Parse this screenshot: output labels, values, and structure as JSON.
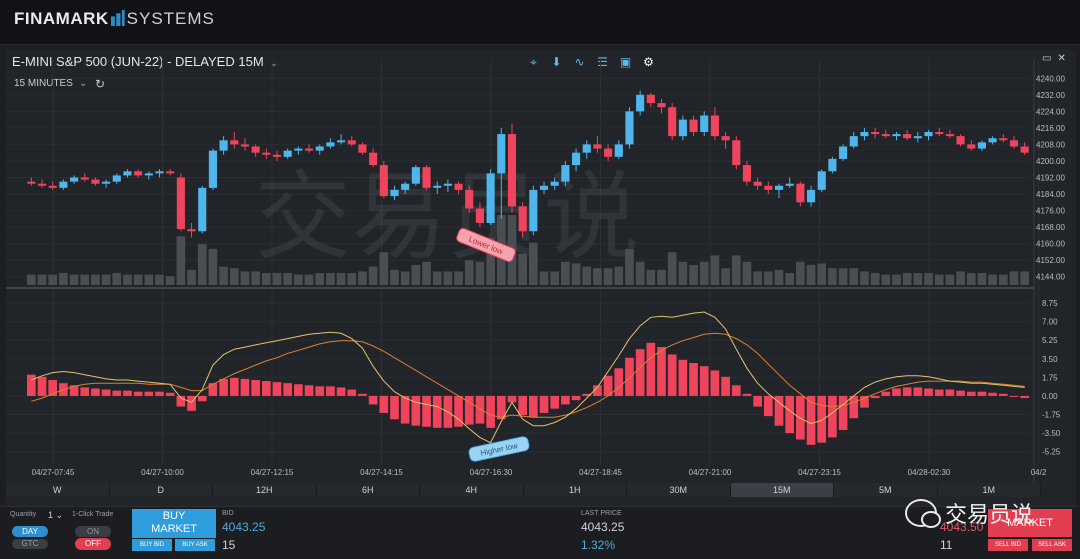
{
  "app": {
    "logo_main": "FINAMARK",
    "logo_sub": "SYSTEMS"
  },
  "chart_header": {
    "title": "E-MINI S&P 500 (JUN-22) - DELAYED 15M",
    "interval": "15 MINUTES"
  },
  "tools": [
    {
      "name": "crosshair-icon",
      "glyph": "⌖"
    },
    {
      "name": "marker-icon",
      "glyph": "⬇"
    },
    {
      "name": "indicator-icon",
      "glyph": "∿"
    },
    {
      "name": "layers-icon",
      "glyph": "☰"
    },
    {
      "name": "calendar-icon",
      "glyph": "▣"
    },
    {
      "name": "gear-icon",
      "glyph": "⚙"
    }
  ],
  "watermark": "交易员说",
  "chart_data": [
    {
      "type": "candlestick",
      "ylim": [
        4140,
        4244
      ],
      "yticks": [
        4240,
        4232,
        4224,
        4216,
        4208,
        4200,
        4192,
        4184,
        4176,
        4168,
        4160,
        4152,
        4144
      ],
      "ytick_labels": [
        "4240.00",
        "4232.00",
        "4224.00",
        "4216.00",
        "4208.00",
        "4200.00",
        "4192.00",
        "4184.00",
        "4176.00",
        "4168.00",
        "4160.00",
        "4152.00",
        "4144.00"
      ],
      "xtick_labels": [
        "04/27-07:45",
        "04/27-10:00",
        "04/27-12:15",
        "04/27-14:15",
        "04/27-16:30",
        "04/27-18:45",
        "04/27-21:00",
        "04/27-23:15",
        "04/28-02:30",
        "04/2"
      ],
      "annotation": "Lower low",
      "candles_ohlc": [
        [
          4190,
          4192,
          4188,
          4189
        ],
        [
          4189,
          4191,
          4187,
          4188
        ],
        [
          4188,
          4190,
          4186,
          4187
        ],
        [
          4187,
          4191,
          4186,
          4190
        ],
        [
          4190,
          4193,
          4189,
          4192
        ],
        [
          4192,
          4194,
          4190,
          4191
        ],
        [
          4191,
          4192,
          4188,
          4189
        ],
        [
          4189,
          4191,
          4187,
          4190
        ],
        [
          4190,
          4194,
          4189,
          4193
        ],
        [
          4193,
          4196,
          4192,
          4195
        ],
        [
          4195,
          4196,
          4192,
          4193
        ],
        [
          4193,
          4195,
          4191,
          4194
        ],
        [
          4194,
          4196,
          4192,
          4195
        ],
        [
          4195,
          4196,
          4193,
          4194
        ],
        [
          4192,
          4194,
          4166,
          4167
        ],
        [
          4167,
          4170,
          4163,
          4166
        ],
        [
          4166,
          4188,
          4165,
          4187
        ],
        [
          4187,
          4206,
          4186,
          4205
        ],
        [
          4205,
          4212,
          4203,
          4210
        ],
        [
          4210,
          4214,
          4206,
          4208
        ],
        [
          4208,
          4211,
          4205,
          4207
        ],
        [
          4207,
          4208,
          4202,
          4204
        ],
        [
          4204,
          4206,
          4201,
          4203
        ],
        [
          4203,
          4205,
          4200,
          4202
        ],
        [
          4202,
          4206,
          4201,
          4205
        ],
        [
          4205,
          4207,
          4203,
          4206
        ],
        [
          4206,
          4208,
          4204,
          4205
        ],
        [
          4205,
          4208,
          4203,
          4207
        ],
        [
          4207,
          4211,
          4206,
          4209
        ],
        [
          4209,
          4213,
          4208,
          4210
        ],
        [
          4210,
          4212,
          4207,
          4208
        ],
        [
          4208,
          4209,
          4203,
          4204
        ],
        [
          4204,
          4206,
          4197,
          4198
        ],
        [
          4198,
          4200,
          4182,
          4183
        ],
        [
          4183,
          4188,
          4181,
          4186
        ],
        [
          4186,
          4190,
          4184,
          4189
        ],
        [
          4189,
          4198,
          4188,
          4197
        ],
        [
          4197,
          4198,
          4186,
          4187
        ],
        [
          4187,
          4190,
          4184,
          4188
        ],
        [
          4188,
          4191,
          4185,
          4189
        ],
        [
          4189,
          4190,
          4184,
          4186
        ],
        [
          4186,
          4188,
          4175,
          4177
        ],
        [
          4177,
          4180,
          4168,
          4170
        ],
        [
          4170,
          4196,
          4169,
          4194
        ],
        [
          4194,
          4216,
          4172,
          4213
        ],
        [
          4213,
          4218,
          4175,
          4178
        ],
        [
          4178,
          4180,
          4163,
          4166
        ],
        [
          4166,
          4188,
          4164,
          4186
        ],
        [
          4186,
          4190,
          4184,
          4188
        ],
        [
          4188,
          4192,
          4186,
          4190
        ],
        [
          4190,
          4200,
          4188,
          4198
        ],
        [
          4198,
          4206,
          4195,
          4204
        ],
        [
          4204,
          4210,
          4201,
          4208
        ],
        [
          4208,
          4212,
          4204,
          4206
        ],
        [
          4206,
          4208,
          4200,
          4202
        ],
        [
          4202,
          4210,
          4201,
          4208
        ],
        [
          4208,
          4226,
          4206,
          4224
        ],
        [
          4224,
          4234,
          4222,
          4232
        ],
        [
          4232,
          4233,
          4226,
          4228
        ],
        [
          4228,
          4230,
          4223,
          4226
        ],
        [
          4226,
          4228,
          4210,
          4212
        ],
        [
          4212,
          4222,
          4210,
          4220
        ],
        [
          4220,
          4222,
          4212,
          4214
        ],
        [
          4214,
          4224,
          4212,
          4222
        ],
        [
          4222,
          4226,
          4210,
          4212
        ],
        [
          4212,
          4214,
          4206,
          4210
        ],
        [
          4210,
          4212,
          4196,
          4198
        ],
        [
          4198,
          4200,
          4188,
          4190
        ],
        [
          4190,
          4192,
          4186,
          4188
        ],
        [
          4188,
          4190,
          4184,
          4186
        ],
        [
          4186,
          4189,
          4182,
          4188
        ],
        [
          4188,
          4192,
          4187,
          4189
        ],
        [
          4189,
          4190,
          4178,
          4180
        ],
        [
          4180,
          4188,
          4178,
          4186
        ],
        [
          4186,
          4196,
          4185,
          4195
        ],
        [
          4195,
          4202,
          4194,
          4201
        ],
        [
          4201,
          4208,
          4200,
          4207
        ],
        [
          4207,
          4214,
          4206,
          4212
        ],
        [
          4212,
          4216,
          4210,
          4214
        ],
        [
          4214,
          4216,
          4211,
          4213
        ],
        [
          4213,
          4215,
          4211,
          4212
        ],
        [
          4212,
          4214,
          4210,
          4213
        ],
        [
          4213,
          4215,
          4210,
          4211
        ],
        [
          4211,
          4214,
          4209,
          4212
        ],
        [
          4212,
          4215,
          4210,
          4214
        ],
        [
          4214,
          4216,
          4212,
          4213
        ],
        [
          4213,
          4215,
          4211,
          4212
        ],
        [
          4212,
          4213,
          4207,
          4208
        ],
        [
          4208,
          4210,
          4205,
          4206
        ],
        [
          4206,
          4210,
          4205,
          4209
        ],
        [
          4209,
          4212,
          4208,
          4211
        ],
        [
          4211,
          4213,
          4209,
          4210
        ],
        [
          4210,
          4212,
          4206,
          4207
        ],
        [
          4207,
          4209,
          4203,
          4204
        ]
      ]
    },
    {
      "type": "bar",
      "ylim": [
        -6.5,
        9.5
      ],
      "yticks": [
        8.75,
        7.0,
        5.25,
        3.5,
        1.75,
        0.0,
        -1.75,
        -3.5,
        -5.25
      ],
      "ytick_labels": [
        "8.75",
        "7.00",
        "5.25",
        "3.50",
        "1.75",
        "0.00",
        "-1.75",
        "-3.50",
        "-5.25"
      ],
      "annotation": "Higher low",
      "histogram": [
        2.0,
        1.8,
        1.5,
        1.2,
        1.0,
        0.8,
        0.7,
        0.6,
        0.5,
        0.5,
        0.4,
        0.4,
        0.4,
        0.3,
        -1.0,
        -1.4,
        -0.5,
        1.2,
        1.6,
        1.7,
        1.6,
        1.5,
        1.4,
        1.3,
        1.2,
        1.1,
        1.0,
        0.9,
        0.9,
        0.8,
        0.6,
        0.2,
        -0.8,
        -1.6,
        -2.2,
        -2.6,
        -2.8,
        -2.9,
        -3.0,
        -3.0,
        -2.9,
        -2.7,
        -2.6,
        -3.0,
        -2.2,
        -0.6,
        -1.8,
        -2.0,
        -1.6,
        -1.2,
        -0.8,
        -0.4,
        0.2,
        1.0,
        1.9,
        2.6,
        3.6,
        4.4,
        5.0,
        4.6,
        3.9,
        3.4,
        3.1,
        2.8,
        2.4,
        1.8,
        1.0,
        0.2,
        -1.0,
        -1.9,
        -2.8,
        -3.5,
        -4.1,
        -4.6,
        -4.4,
        -3.9,
        -3.2,
        -2.1,
        -1.1,
        -0.2,
        0.4,
        0.7,
        0.8,
        0.8,
        0.7,
        0.6,
        0.6,
        0.5,
        0.4,
        0.4,
        0.3,
        0.2,
        0.0,
        -0.2
      ],
      "line_fast": [
        1.5,
        1.9,
        2.2,
        2.3,
        2.2,
        2.0,
        1.8,
        1.6,
        1.5,
        1.5,
        1.4,
        1.3,
        1.2,
        1.1,
        -0.2,
        -0.6,
        0.6,
        2.9,
        3.9,
        4.4,
        4.6,
        4.8,
        5.0,
        5.2,
        5.4,
        5.6,
        5.8,
        5.9,
        6.0,
        5.9,
        5.4,
        4.5,
        2.8,
        1.4,
        0.4,
        -0.2,
        -0.6,
        -0.8,
        -1.0,
        -1.5,
        -2.2,
        -3.1,
        -3.9,
        -4.4,
        -2.4,
        -0.6,
        -2.2,
        -2.8,
        -2.8,
        -2.5,
        -2.0,
        -1.2,
        -0.2,
        0.8,
        2.3,
        3.8,
        5.4,
        6.6,
        7.4,
        7.5,
        7.4,
        7.6,
        7.8,
        7.9,
        7.4,
        6.3,
        4.4,
        2.6,
        1.2,
        0.2,
        -0.6,
        -1.4,
        -2.1,
        -2.6,
        -2.3,
        -1.6,
        -0.8,
        0.0,
        0.8,
        1.3,
        1.6,
        1.8,
        1.9,
        1.9,
        1.8,
        1.6,
        1.4,
        1.3,
        1.2,
        1.2,
        1.1,
        1.0,
        0.9,
        0.8
      ],
      "line_slow": [
        -0.5,
        -0.2,
        0.2,
        0.6,
        0.9,
        1.1,
        1.2,
        1.2,
        1.2,
        1.2,
        1.2,
        1.1,
        1.1,
        1.1,
        0.8,
        0.5,
        0.5,
        1.1,
        1.6,
        2.1,
        2.5,
        2.9,
        3.3,
        3.6,
        4.0,
        4.3,
        4.6,
        4.9,
        5.1,
        5.2,
        5.2,
        5.1,
        4.7,
        4.2,
        3.6,
        3.0,
        2.4,
        1.8,
        1.2,
        0.6,
        0.0,
        -0.6,
        -1.2,
        -1.8,
        -2.0,
        -1.8,
        -1.9,
        -2.0,
        -2.0,
        -2.0,
        -1.8,
        -1.5,
        -1.1,
        -0.6,
        0.0,
        0.8,
        1.7,
        2.7,
        3.6,
        4.3,
        4.8,
        5.2,
        5.5,
        5.8,
        5.9,
        5.8,
        5.4,
        4.8,
        4.0,
        3.0,
        2.0,
        1.0,
        0.2,
        -0.6,
        -0.9,
        -1.0,
        -0.9,
        -0.6,
        -0.2,
        0.2,
        0.6,
        0.9,
        1.1,
        1.3,
        1.4,
        1.4,
        1.4,
        1.4,
        1.3,
        1.3,
        1.2,
        1.1,
        1.0,
        0.9
      ]
    }
  ],
  "timeframes": [
    "W",
    "D",
    "12H",
    "6H",
    "4H",
    "1H",
    "30M",
    "15M",
    "5M",
    "1M"
  ],
  "active_timeframe": "15M",
  "order": {
    "quantity_label": "Quantity",
    "quantity": "1",
    "one_click_label": "1-Click Trade",
    "tif_day": "DAY",
    "tif_gtc": "GTC",
    "toggle_on": "ON",
    "toggle_off": "OFF",
    "buy_line1": "BUY",
    "buy_line2": "MARKET",
    "buy_bid": "BUY BID",
    "buy_ask": "BUY ASK",
    "bid_label": "BID",
    "bid": "4043.25",
    "bid_size": "15",
    "last_label": "LAST PRICE",
    "last": "4043.25",
    "change": "1.32%",
    "ask": "4043.50",
    "ask_size": "11",
    "sell_line": "MARKET",
    "sell_bid": "SELL BID",
    "sell_ask": "SELL ASK"
  },
  "brand_overlay": "交易员说",
  "colors": {
    "up": "#4fb6ec",
    "down": "#f0445d",
    "bg": "#212428",
    "line_fast": "#e2c46a",
    "line_slow": "#d98232"
  }
}
